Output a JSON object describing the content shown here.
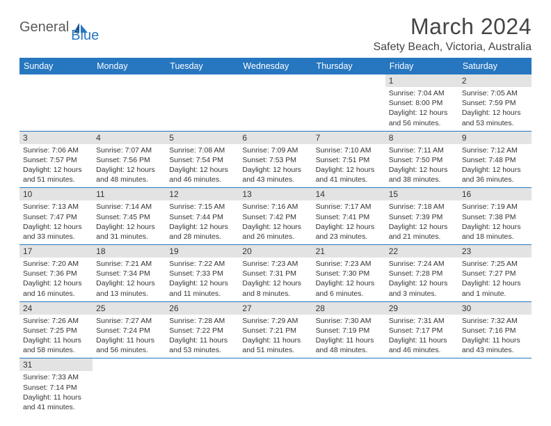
{
  "logo": {
    "text1": "General",
    "text2": "Blue"
  },
  "title": "March 2024",
  "location": "Safety Beach, Victoria, Australia",
  "colors": {
    "header_bg": "#2676c0",
    "header_text": "#ffffff",
    "daynum_bg": "#e3e3e3",
    "row_border": "#2676c0",
    "logo_gray": "#5a5a5a",
    "logo_blue": "#2676c0"
  },
  "weekdays": [
    "Sunday",
    "Monday",
    "Tuesday",
    "Wednesday",
    "Thursday",
    "Friday",
    "Saturday"
  ],
  "weeks": [
    [
      null,
      null,
      null,
      null,
      null,
      {
        "day": "1",
        "sunrise": "7:04 AM",
        "sunset": "8:00 PM",
        "daylight_h": "12",
        "daylight_m": "56"
      },
      {
        "day": "2",
        "sunrise": "7:05 AM",
        "sunset": "7:59 PM",
        "daylight_h": "12",
        "daylight_m": "53"
      }
    ],
    [
      {
        "day": "3",
        "sunrise": "7:06 AM",
        "sunset": "7:57 PM",
        "daylight_h": "12",
        "daylight_m": "51"
      },
      {
        "day": "4",
        "sunrise": "7:07 AM",
        "sunset": "7:56 PM",
        "daylight_h": "12",
        "daylight_m": "48"
      },
      {
        "day": "5",
        "sunrise": "7:08 AM",
        "sunset": "7:54 PM",
        "daylight_h": "12",
        "daylight_m": "46"
      },
      {
        "day": "6",
        "sunrise": "7:09 AM",
        "sunset": "7:53 PM",
        "daylight_h": "12",
        "daylight_m": "43"
      },
      {
        "day": "7",
        "sunrise": "7:10 AM",
        "sunset": "7:51 PM",
        "daylight_h": "12",
        "daylight_m": "41"
      },
      {
        "day": "8",
        "sunrise": "7:11 AM",
        "sunset": "7:50 PM",
        "daylight_h": "12",
        "daylight_m": "38"
      },
      {
        "day": "9",
        "sunrise": "7:12 AM",
        "sunset": "7:48 PM",
        "daylight_h": "12",
        "daylight_m": "36"
      }
    ],
    [
      {
        "day": "10",
        "sunrise": "7:13 AM",
        "sunset": "7:47 PM",
        "daylight_h": "12",
        "daylight_m": "33"
      },
      {
        "day": "11",
        "sunrise": "7:14 AM",
        "sunset": "7:45 PM",
        "daylight_h": "12",
        "daylight_m": "31"
      },
      {
        "day": "12",
        "sunrise": "7:15 AM",
        "sunset": "7:44 PM",
        "daylight_h": "12",
        "daylight_m": "28"
      },
      {
        "day": "13",
        "sunrise": "7:16 AM",
        "sunset": "7:42 PM",
        "daylight_h": "12",
        "daylight_m": "26"
      },
      {
        "day": "14",
        "sunrise": "7:17 AM",
        "sunset": "7:41 PM",
        "daylight_h": "12",
        "daylight_m": "23"
      },
      {
        "day": "15",
        "sunrise": "7:18 AM",
        "sunset": "7:39 PM",
        "daylight_h": "12",
        "daylight_m": "21"
      },
      {
        "day": "16",
        "sunrise": "7:19 AM",
        "sunset": "7:38 PM",
        "daylight_h": "12",
        "daylight_m": "18"
      }
    ],
    [
      {
        "day": "17",
        "sunrise": "7:20 AM",
        "sunset": "7:36 PM",
        "daylight_h": "12",
        "daylight_m": "16"
      },
      {
        "day": "18",
        "sunrise": "7:21 AM",
        "sunset": "7:34 PM",
        "daylight_h": "12",
        "daylight_m": "13"
      },
      {
        "day": "19",
        "sunrise": "7:22 AM",
        "sunset": "7:33 PM",
        "daylight_h": "12",
        "daylight_m": "11"
      },
      {
        "day": "20",
        "sunrise": "7:23 AM",
        "sunset": "7:31 PM",
        "daylight_h": "12",
        "daylight_m": "8"
      },
      {
        "day": "21",
        "sunrise": "7:23 AM",
        "sunset": "7:30 PM",
        "daylight_h": "12",
        "daylight_m": "6"
      },
      {
        "day": "22",
        "sunrise": "7:24 AM",
        "sunset": "7:28 PM",
        "daylight_h": "12",
        "daylight_m": "3"
      },
      {
        "day": "23",
        "sunrise": "7:25 AM",
        "sunset": "7:27 PM",
        "daylight_h": "12",
        "daylight_m": "1",
        "singular": true
      }
    ],
    [
      {
        "day": "24",
        "sunrise": "7:26 AM",
        "sunset": "7:25 PM",
        "daylight_h": "11",
        "daylight_m": "58"
      },
      {
        "day": "25",
        "sunrise": "7:27 AM",
        "sunset": "7:24 PM",
        "daylight_h": "11",
        "daylight_m": "56"
      },
      {
        "day": "26",
        "sunrise": "7:28 AM",
        "sunset": "7:22 PM",
        "daylight_h": "11",
        "daylight_m": "53"
      },
      {
        "day": "27",
        "sunrise": "7:29 AM",
        "sunset": "7:21 PM",
        "daylight_h": "11",
        "daylight_m": "51"
      },
      {
        "day": "28",
        "sunrise": "7:30 AM",
        "sunset": "7:19 PM",
        "daylight_h": "11",
        "daylight_m": "48"
      },
      {
        "day": "29",
        "sunrise": "7:31 AM",
        "sunset": "7:17 PM",
        "daylight_h": "11",
        "daylight_m": "46"
      },
      {
        "day": "30",
        "sunrise": "7:32 AM",
        "sunset": "7:16 PM",
        "daylight_h": "11",
        "daylight_m": "43"
      }
    ],
    [
      {
        "day": "31",
        "sunrise": "7:33 AM",
        "sunset": "7:14 PM",
        "daylight_h": "11",
        "daylight_m": "41"
      },
      null,
      null,
      null,
      null,
      null,
      null
    ]
  ],
  "labels": {
    "sunrise": "Sunrise:",
    "sunset": "Sunset:",
    "daylight": "Daylight:",
    "hours": "hours",
    "and": "and",
    "minutes": "minutes.",
    "minute": "minute."
  }
}
